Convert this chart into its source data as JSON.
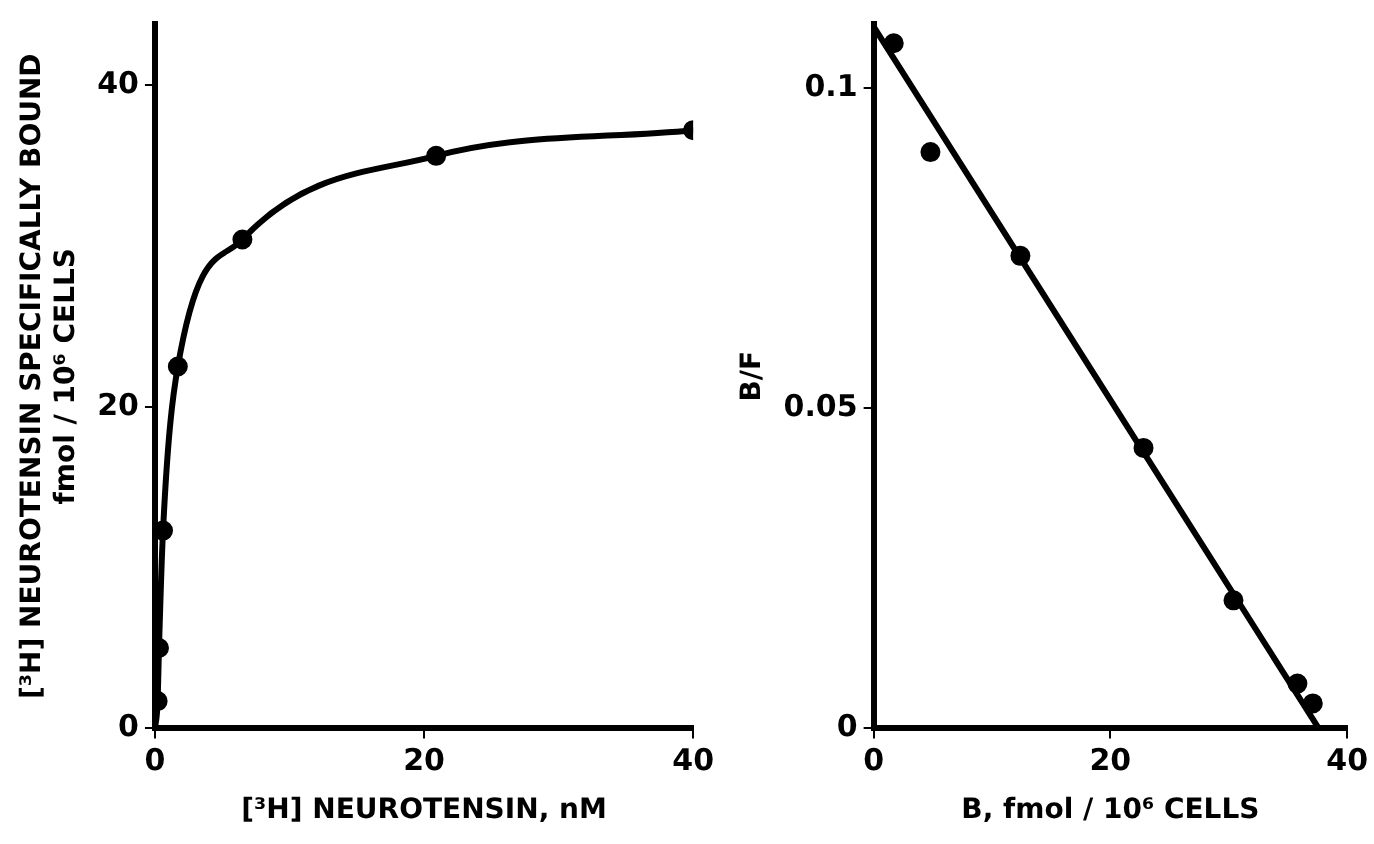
{
  "chart_data": [
    {
      "type": "scatter",
      "xlabel": "[³H] NEUROTENSIN, nM",
      "ylabel": "[³H] NEUROTENSIN SPECIFICALLY BOUND\nfmol / 10⁶ CELLS",
      "xlim": [
        0,
        40
      ],
      "ylim": [
        0,
        43.8
      ],
      "xticks": [
        0,
        20,
        40
      ],
      "yticks": [
        0,
        20,
        40
      ],
      "marker": "circle",
      "series": [
        {
          "color": "#000000",
          "x": [
            0.2,
            0.3,
            0.6,
            1.7,
            6.5,
            20.9,
            40
          ],
          "values": [
            1.7,
            5,
            12.3,
            22.5,
            30.4,
            35.6,
            37.2
          ]
        },
        {
          "type": "line",
          "color": "#000000",
          "line_style": "solid",
          "marker": "none",
          "x": [
            0,
            0.2,
            0.3,
            0.6,
            1.7,
            6.5,
            20.9,
            40
          ],
          "values": [
            0,
            1.7,
            5,
            12.3,
            22.5,
            30.4,
            35.6,
            37.2
          ]
        }
      ]
    },
    {
      "type": "scatter",
      "xlabel": "B, fmol / 10⁶ CELLS",
      "ylabel": "B/F",
      "xlim": [
        0,
        40
      ],
      "ylim": [
        0,
        0.11
      ],
      "xticks": [
        0,
        20,
        40
      ],
      "yticks": [
        0,
        0.05,
        0.1
      ],
      "marker": "circle",
      "series": [
        {
          "color": "#000000",
          "x": [
            1.7,
            4.8,
            12.4,
            22.8,
            30.4,
            35.8,
            37.1
          ],
          "values": [
            0.107,
            0.09,
            0.0738,
            0.0438,
            0.02,
            0.007,
            0.0039
          ]
        },
        {
          "type": "line",
          "color": "#000000",
          "line_style": "solid",
          "marker": "none",
          "x": [
            0,
            37.6
          ],
          "values": [
            0.1096,
            0
          ]
        }
      ]
    }
  ]
}
